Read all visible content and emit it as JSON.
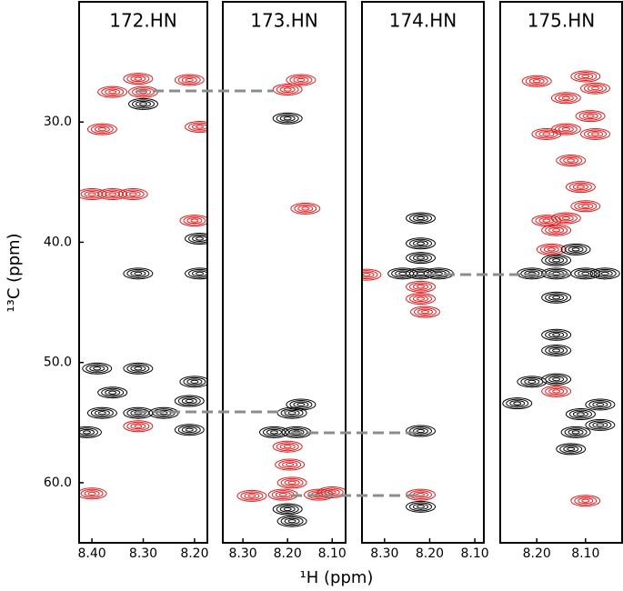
{
  "xlabel": "¹H (ppm)",
  "ylabel": "¹³C (ppm)",
  "chart_data": [
    {
      "type": "contour",
      "title": "172.HN",
      "xlim": [
        8.425,
        8.175
      ],
      "ylim": [
        20,
        65
      ],
      "xticks": [
        {
          "value": 8.4,
          "label": "8.40"
        },
        {
          "value": 8.3,
          "label": "8.30"
        },
        {
          "value": 8.2,
          "label": "8.20"
        }
      ],
      "yticks": [
        {
          "value": 30,
          "label": "30.0"
        },
        {
          "value": 40,
          "label": "40.0"
        },
        {
          "value": 50,
          "label": "50.0"
        },
        {
          "value": 60,
          "label": "60.0"
        }
      ],
      "series": [
        {
          "color": "#e31a1c",
          "x": [
            8.36,
            8.3,
            8.31,
            8.21,
            8.38,
            8.19,
            8.4,
            8.36,
            8.32,
            8.2,
            8.4,
            8.31
          ],
          "values": [
            27.5,
            27.5,
            26.4,
            26.5,
            30.6,
            30.4,
            36.0,
            36.0,
            36.0,
            38.2,
            60.9,
            55.3
          ]
        },
        {
          "color": "#000000",
          "x": [
            8.3,
            8.31,
            8.19,
            8.19,
            8.39,
            8.31,
            8.36,
            8.38,
            8.31,
            8.26,
            8.41,
            8.2,
            8.21,
            8.21
          ],
          "values": [
            28.5,
            42.6,
            42.6,
            39.7,
            50.5,
            50.5,
            52.5,
            54.2,
            54.2,
            54.2,
            55.8,
            51.6,
            53.2,
            55.6
          ]
        }
      ]
    },
    {
      "type": "contour",
      "title": "173.HN",
      "xlim": [
        8.345,
        8.07
      ],
      "ylim": [
        20,
        65
      ],
      "xticks": [
        {
          "value": 8.3,
          "label": "8.30"
        },
        {
          "value": 8.2,
          "label": "8.20"
        },
        {
          "value": 8.1,
          "label": "8.10"
        }
      ],
      "series": [
        {
          "color": "#e31a1c",
          "x": [
            8.2,
            8.17,
            8.16,
            8.2,
            8.195,
            8.19,
            8.28,
            8.21,
            8.13,
            8.1
          ],
          "values": [
            27.3,
            26.5,
            37.2,
            57.0,
            58.5,
            60.0,
            61.1,
            61.0,
            61.0,
            60.8
          ]
        },
        {
          "color": "#000000",
          "x": [
            8.19,
            8.17,
            8.23,
            8.18,
            8.2,
            8.19,
            8.2
          ],
          "values": [
            54.2,
            53.5,
            55.8,
            55.8,
            62.2,
            63.2,
            29.7
          ]
        }
      ]
    },
    {
      "type": "contour",
      "title": "174.HN",
      "xlim": [
        8.35,
        8.08
      ],
      "ylim": [
        20,
        65
      ],
      "xticks": [
        {
          "value": 8.3,
          "label": "8.30"
        },
        {
          "value": 8.2,
          "label": "8.20"
        },
        {
          "value": 8.1,
          "label": "8.10"
        }
      ],
      "series": [
        {
          "color": "#e31a1c",
          "x": [
            8.34,
            8.22,
            8.22,
            8.21,
            8.22
          ],
          "values": [
            42.7,
            43.7,
            44.7,
            45.8,
            61.0
          ]
        },
        {
          "color": "#000000",
          "x": [
            8.22,
            8.26,
            8.18,
            8.22,
            8.22,
            8.22,
            8.22,
            8.22
          ],
          "values": [
            42.6,
            42.6,
            42.6,
            40.1,
            41.3,
            38.0,
            55.7,
            62.0
          ]
        }
      ]
    },
    {
      "type": "contour",
      "title": "175.HN",
      "xlim": [
        8.275,
        8.025
      ],
      "ylim": [
        20,
        65
      ],
      "xticks": [
        {
          "value": 8.2,
          "label": "8.20"
        },
        {
          "value": 8.1,
          "label": "8.10"
        }
      ],
      "series": [
        {
          "color": "#e31a1c",
          "x": [
            8.2,
            8.14,
            8.08,
            8.1,
            8.09,
            8.14,
            8.18,
            8.08,
            8.13,
            8.11,
            8.1,
            8.18,
            8.16,
            8.14,
            8.17,
            8.1,
            8.16
          ],
          "values": [
            26.6,
            28.0,
            27.2,
            26.2,
            29.5,
            30.6,
            31.0,
            31.0,
            33.2,
            35.4,
            37.0,
            38.2,
            39.0,
            38.0,
            40.6,
            61.5,
            52.4
          ]
        },
        {
          "color": "#000000",
          "x": [
            8.16,
            8.16,
            8.21,
            8.1,
            8.06,
            8.16,
            8.16,
            8.16,
            8.21,
            8.07,
            8.11,
            8.12,
            8.07,
            8.24,
            8.13,
            8.16,
            8.12
          ],
          "values": [
            41.5,
            42.6,
            42.6,
            42.6,
            42.6,
            47.7,
            49.0,
            51.4,
            51.6,
            53.5,
            54.3,
            55.8,
            55.2,
            53.4,
            57.2,
            44.6,
            40.6
          ]
        }
      ]
    }
  ]
}
